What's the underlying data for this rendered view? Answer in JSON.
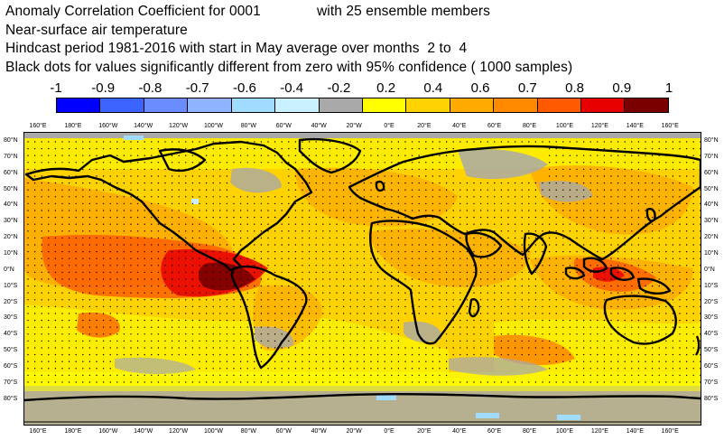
{
  "title": {
    "line1_left": "Anomaly Correlation Coefficient for 0001",
    "line1_right": "with 25 ensemble members",
    "line2": "Near-surface air temperature",
    "line3": "Hindcast period 1981-2016 with start in May average over months  2 to  4",
    "line4": "Black dots for values significantly different from zero with 95% confidence ( 1000 samples)"
  },
  "colorbar": {
    "labels": [
      "-1",
      "-0.9",
      "-0.8",
      "-0.7",
      "-0.6",
      "-0.4",
      "-0.2",
      "0.2",
      "0.4",
      "0.6",
      "0.7",
      "0.8",
      "0.9",
      "1"
    ],
    "colors": [
      "#0000ff",
      "#3a63ff",
      "#6a8cff",
      "#8fb3ff",
      "#9fdcff",
      "#c8f0ff",
      "#a9a9a9",
      "#ffff00",
      "#ffd200",
      "#ffaa00",
      "#ff8a00",
      "#ff5a00",
      "#e80000",
      "#7a0000"
    ]
  },
  "map": {
    "lon_labels_top": [
      "160°E",
      "180°E",
      "160°W",
      "140°W",
      "120°W",
      "100°W",
      "80°W",
      "60°W",
      "40°W",
      "20°W",
      "0°E",
      "20°E",
      "40°E",
      "60°E",
      "80°E",
      "100°E",
      "120°E",
      "140°E",
      "160°E"
    ],
    "lon_labels_bottom": [
      "160°E",
      "180°E",
      "160°W",
      "140°W",
      "120°W",
      "100°W",
      "80°W",
      "60°W",
      "40°W",
      "20°W",
      "0°E",
      "20°E",
      "40°E",
      "60°E",
      "80°E",
      "100°E",
      "120°E",
      "140°E",
      "160°E"
    ],
    "lat_labels_left": [
      "80°N",
      "70°N",
      "60°N",
      "50°N",
      "40°N",
      "30°N",
      "20°N",
      "10°N",
      "0°N",
      "10°S",
      "20°S",
      "30°S",
      "40°S",
      "50°S",
      "60°S",
      "70°S",
      "80°S"
    ],
    "lat_labels_right": [
      "80°N",
      "70°N",
      "60°N",
      "50°N",
      "40°N",
      "30°N",
      "20°N",
      "10°N",
      "0°N",
      "10°S",
      "20°S",
      "30°S",
      "40°S",
      "50°S",
      "60°S",
      "70°S",
      "80°S"
    ],
    "colors": {
      "coast": "#000000",
      "dots": "#000000"
    }
  }
}
